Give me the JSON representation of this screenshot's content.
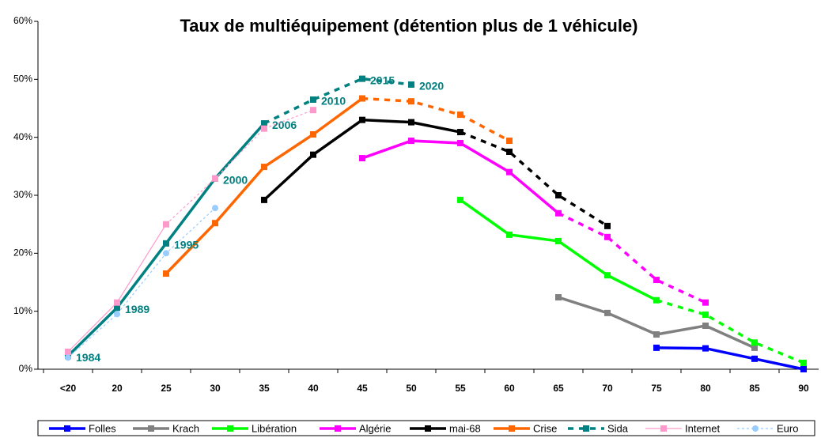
{
  "chart_data": {
    "type": "line",
    "title": "Taux de multiéquipement (détention plus de 1 véhicule)",
    "categories": [
      "<20",
      "20",
      "25",
      "30",
      "35",
      "40",
      "45",
      "50",
      "55",
      "60",
      "65",
      "70",
      "75",
      "80",
      "85",
      "90"
    ],
    "ylim": [
      0,
      60
    ],
    "yticks": [
      {
        "value": 0,
        "label": "0%"
      },
      {
        "value": 10,
        "label": "10%"
      },
      {
        "value": 20,
        "label": "20%"
      },
      {
        "value": 30,
        "label": "30%"
      },
      {
        "value": 40,
        "label": "40%"
      },
      {
        "value": 50,
        "label": "50%"
      },
      {
        "value": 60,
        "label": "60%"
      }
    ],
    "grid": false,
    "legend": "bottom",
    "series": [
      {
        "name": "Folles",
        "color": "#0000ff",
        "line_width": 3.5,
        "marker": "square",
        "values": [
          null,
          null,
          null,
          null,
          null,
          null,
          null,
          null,
          null,
          null,
          null,
          null,
          3.7,
          3.6,
          1.8,
          0
        ]
      },
      {
        "name": "Krach",
        "color": "#808080",
        "line_width": 3.5,
        "marker": "square",
        "values": [
          null,
          null,
          null,
          null,
          null,
          null,
          null,
          null,
          null,
          null,
          12.4,
          9.7,
          6.0,
          7.5,
          3.7,
          null
        ]
      },
      {
        "name": "Libération",
        "color": "#00ff00",
        "line_width": 3.5,
        "marker": "square",
        "projection_from": "75",
        "values": [
          null,
          null,
          null,
          null,
          null,
          null,
          null,
          null,
          29.2,
          23.2,
          22.1,
          16.2,
          11.9,
          9.4,
          4.6,
          1.1
        ]
      },
      {
        "name": "Algérie",
        "color": "#ff00ff",
        "line_width": 3.5,
        "marker": "square",
        "projection_from": "65",
        "values": [
          null,
          null,
          null,
          null,
          null,
          null,
          36.4,
          39.4,
          39.0,
          34.0,
          26.9,
          22.8,
          15.4,
          11.5,
          null,
          null
        ]
      },
      {
        "name": "mai-68",
        "color": "#000000",
        "line_width": 3.5,
        "marker": "square",
        "projection_from": "55",
        "values": [
          null,
          null,
          null,
          null,
          29.2,
          37.0,
          43.0,
          42.6,
          40.9,
          37.5,
          30.0,
          24.7,
          null,
          null,
          null,
          null
        ]
      },
      {
        "name": "Crise",
        "color": "#ff6600",
        "line_width": 3.5,
        "marker": "square",
        "projection_from": "45",
        "values": [
          null,
          null,
          16.5,
          25.2,
          34.9,
          40.5,
          46.7,
          46.2,
          43.9,
          39.4,
          null,
          null,
          null,
          null,
          null,
          null
        ]
      },
      {
        "name": "Sida",
        "color": "#008080",
        "line_width": 3.5,
        "marker": "square",
        "projection_from": "35",
        "legend_dash": true,
        "values": [
          2.3,
          10.6,
          21.7,
          32.9,
          42.4,
          46.5,
          50.1,
          49.1,
          null,
          null,
          null,
          null,
          null,
          null,
          null,
          null
        ],
        "point_labels": [
          "1984",
          "1989",
          "1995",
          "2000",
          "2006",
          "2010",
          "2015",
          "2020",
          null,
          null,
          null,
          null,
          null,
          null,
          null,
          null
        ]
      },
      {
        "name": "Internet",
        "color": "#ff99cc",
        "line_width": 1.2,
        "marker": "square",
        "projection_from": "25",
        "values": [
          3.0,
          11.5,
          25.0,
          32.9,
          41.5,
          44.7,
          null,
          null,
          null,
          null,
          null,
          null,
          null,
          null,
          null,
          null
        ]
      },
      {
        "name": "Euro",
        "color": "#99ccff",
        "line_width": 1.2,
        "marker": "circle",
        "projection_from": "<20",
        "legend_dash": true,
        "values": [
          2.0,
          9.5,
          20.0,
          27.8,
          null,
          null,
          null,
          null,
          null,
          null,
          null,
          null,
          null,
          null,
          null,
          null
        ]
      }
    ]
  }
}
